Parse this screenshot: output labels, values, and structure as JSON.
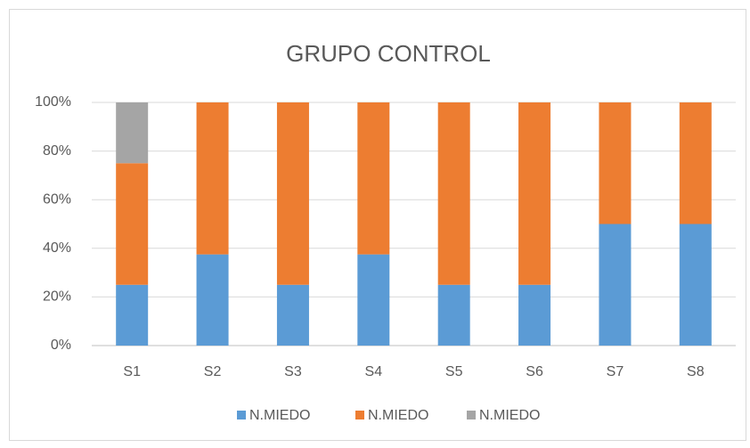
{
  "chart_data": {
    "type": "stacked_bar",
    "title": "GRUPO CONTROL",
    "categories": [
      "S1",
      "S2",
      "S3",
      "S4",
      "S5",
      "S6",
      "S7",
      "S8"
    ],
    "series": [
      {
        "name": "N.MIEDO",
        "color": "#5b9bd5",
        "values": [
          25,
          37.5,
          25,
          37.5,
          25,
          25,
          50,
          50
        ]
      },
      {
        "name": "N.MIEDO",
        "color": "#ed7d31",
        "values": [
          50,
          62.5,
          75,
          62.5,
          75,
          75,
          50,
          50
        ]
      },
      {
        "name": "N.MIEDO",
        "color": "#a5a5a5",
        "values": [
          25,
          0,
          0,
          0,
          0,
          0,
          0,
          0
        ]
      }
    ],
    "ylim": [
      0,
      100
    ],
    "yticks": [
      {
        "value": 0,
        "label": "0%"
      },
      {
        "value": 20,
        "label": "20%"
      },
      {
        "value": 40,
        "label": "40%"
      },
      {
        "value": 60,
        "label": "60%"
      },
      {
        "value": 80,
        "label": "80%"
      },
      {
        "value": 100,
        "label": "100%"
      }
    ],
    "grid": true,
    "legend": "bottom"
  }
}
